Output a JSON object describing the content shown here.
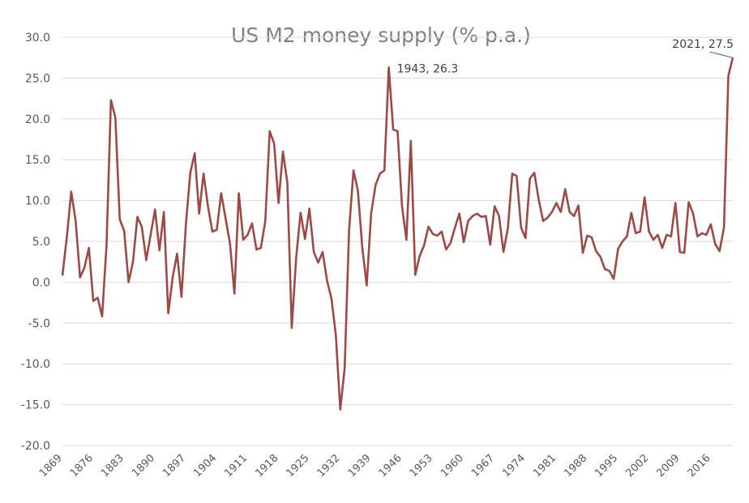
{
  "chart_data": {
    "type": "line",
    "title": "US M2 money supply (% p.a.)",
    "xlabel": "",
    "ylabel": "",
    "ylim": [
      -20,
      30
    ],
    "yticks": [
      30,
      25,
      20,
      15,
      10,
      5,
      0,
      -5,
      -10,
      -15,
      -20
    ],
    "ytick_labels": [
      "30.0",
      "25.0",
      "20.0",
      "15.0",
      "10.0",
      "5.0",
      "0.0",
      "-5.0",
      "-10.0",
      "-15.0",
      "-20.0"
    ],
    "xlim": [
      1869,
      2021
    ],
    "xtick_labels": [
      "1869",
      "1876",
      "1883",
      "1890",
      "1897",
      "1904",
      "1911",
      "1918",
      "1925",
      "1932",
      "1939",
      "1946",
      "1953",
      "1960",
      "1967",
      "1974",
      "1981",
      "1988",
      "1995",
      "2002",
      "2009",
      "2016"
    ],
    "grid": true,
    "line_color": "#9e4a44",
    "series": [
      {
        "x": [
          1869,
          1870,
          1871,
          1872,
          1873,
          1874,
          1875,
          1876,
          1877,
          1878,
          1879,
          1880,
          1881,
          1882,
          1883,
          1884,
          1885,
          1886,
          1887,
          1888,
          1889,
          1890,
          1891,
          1892,
          1893,
          1894,
          1895,
          1896,
          1897,
          1898,
          1899,
          1900,
          1901,
          1902,
          1903,
          1904,
          1905,
          1906,
          1907,
          1908,
          1909,
          1910,
          1911,
          1912,
          1913,
          1914,
          1915,
          1916,
          1917,
          1918,
          1919,
          1920,
          1921,
          1922,
          1923,
          1924,
          1925,
          1926,
          1927,
          1928,
          1929,
          1930,
          1931,
          1932,
          1933,
          1934,
          1935,
          1936,
          1937,
          1938,
          1939,
          1940,
          1941,
          1942,
          1943,
          1944,
          1945,
          1946,
          1947,
          1948,
          1949,
          1950,
          1951,
          1952,
          1953,
          1954,
          1955,
          1956,
          1957,
          1958,
          1959,
          1960,
          1961,
          1962,
          1963,
          1964,
          1965,
          1966,
          1967,
          1968,
          1969,
          1970,
          1971,
          1972,
          1973,
          1974,
          1975,
          1976,
          1977,
          1978,
          1979,
          1980,
          1981,
          1982,
          1983,
          1984,
          1985,
          1986,
          1987,
          1988,
          1989,
          1990,
          1991,
          1992,
          1993,
          1994,
          1995,
          1996,
          1997,
          1998,
          1999,
          2000,
          2001,
          2002,
          2003,
          2004,
          2005,
          2006,
          2007,
          2008,
          2009,
          2010,
          2011,
          2012,
          2013,
          2014,
          2015,
          2016,
          2017,
          2018,
          2019,
          2020,
          2021
        ],
        "values": [
          0.8,
          5.5,
          11.1,
          7.5,
          0.6,
          1.8,
          4.2,
          -2.3,
          -1.9,
          -4.2,
          4.5,
          22.3,
          20.2,
          7.7,
          6.3,
          0.0,
          2.5,
          8.0,
          6.8,
          2.7,
          5.8,
          8.9,
          3.9,
          8.6,
          -3.8,
          0.6,
          3.5,
          -1.8,
          7.1,
          13.4,
          15.8,
          8.4,
          13.3,
          9.3,
          6.2,
          6.4,
          10.9,
          7.8,
          4.7,
          -1.4,
          10.9,
          5.2,
          5.8,
          7.2,
          4.0,
          4.2,
          7.5,
          18.5,
          17.0,
          9.7,
          16.0,
          12.2,
          -5.6,
          3.0,
          8.5,
          5.3,
          9.0,
          3.7,
          2.4,
          3.7,
          0.2,
          -2.0,
          -6.5,
          -15.6,
          -10.5,
          6.4,
          13.7,
          11.2,
          4.2,
          -0.4,
          8.4,
          11.9,
          13.3,
          13.7,
          26.3,
          18.7,
          18.5,
          9.3,
          5.2,
          17.3,
          0.9,
          3.2,
          4.5,
          6.8,
          5.9,
          5.7,
          6.2,
          4.0,
          4.8,
          6.7,
          8.4,
          4.9,
          7.5,
          8.1,
          8.4,
          8.0,
          8.1,
          4.6,
          9.3,
          8.1,
          3.7,
          6.6,
          13.3,
          13.0,
          6.7,
          5.4,
          12.7,
          13.4,
          10.1,
          7.5,
          7.9,
          8.6,
          9.7,
          8.6,
          11.4,
          8.6,
          8.1,
          9.4,
          3.6,
          5.7,
          5.5,
          3.8,
          3.1,
          1.6,
          1.4,
          0.4,
          4.1,
          5.0,
          5.6,
          8.5,
          6.0,
          6.2,
          10.4,
          6.2,
          5.2,
          5.8,
          4.2,
          5.8,
          5.6,
          9.7,
          3.7,
          3.6,
          9.8,
          8.4,
          5.6,
          6.0,
          5.8,
          7.1,
          4.7,
          3.8,
          6.7,
          25.3,
          27.5
        ]
      }
    ],
    "annotations": [
      {
        "x": 1943,
        "y": 26.3,
        "text": "1943, 26.3"
      },
      {
        "x": 2021,
        "y": 27.5,
        "text": "2021, 27.5"
      }
    ]
  }
}
